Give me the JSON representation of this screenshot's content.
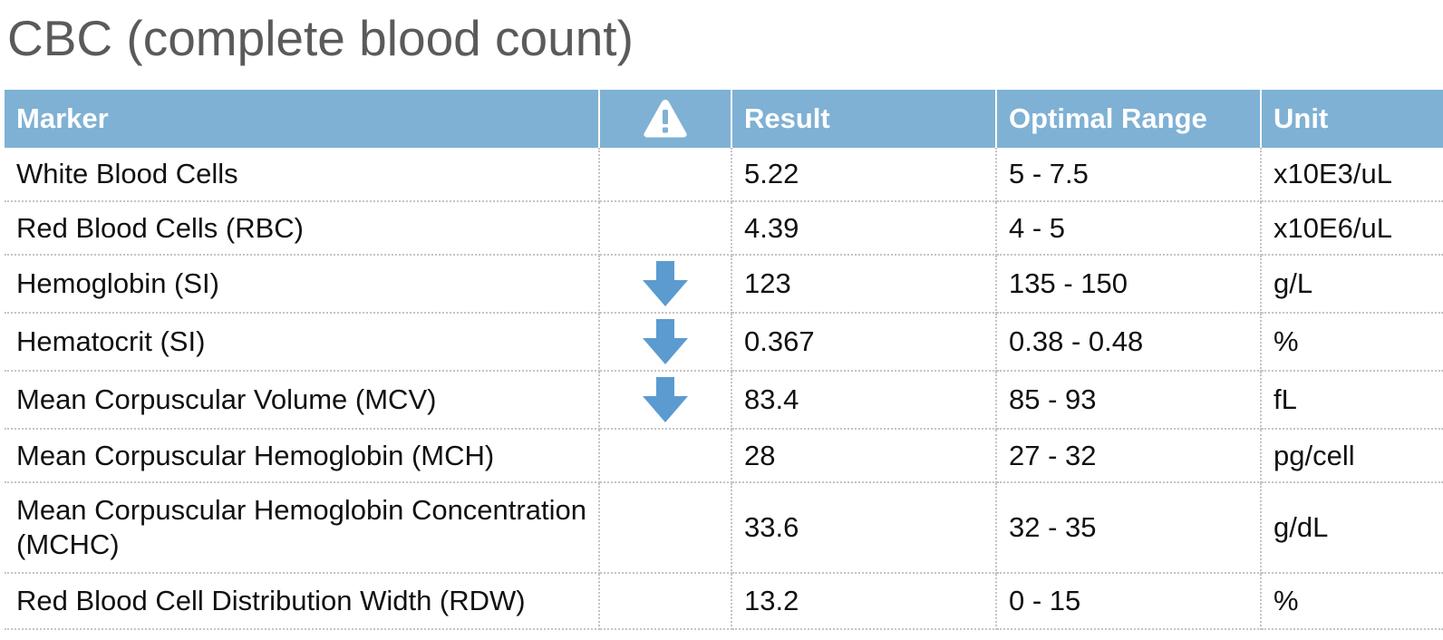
{
  "page": {
    "title": "CBC (complete blood count)"
  },
  "table": {
    "header": {
      "marker": "Marker",
      "flag_icon": "warning-icon",
      "result": "Result",
      "optimal_range": "Optimal Range",
      "unit": "Unit"
    },
    "rows": [
      {
        "marker": "White Blood Cells",
        "flag": "none",
        "result": "5.22",
        "optimal_range": "5 - 7.5",
        "unit": "x10E3/uL"
      },
      {
        "marker": "Red Blood Cells (RBC)",
        "flag": "none",
        "result": "4.39",
        "optimal_range": "4 - 5",
        "unit": "x10E6/uL"
      },
      {
        "marker": "Hemoglobin (SI)",
        "flag": "low",
        "result": "123",
        "optimal_range": "135 - 150",
        "unit": "g/L"
      },
      {
        "marker": "Hematocrit (SI)",
        "flag": "low",
        "result": "0.367",
        "optimal_range": "0.38 - 0.48",
        "unit": "%"
      },
      {
        "marker": "Mean Corpuscular Volume (MCV)",
        "flag": "low",
        "result": "83.4",
        "optimal_range": "85 - 93",
        "unit": "fL"
      },
      {
        "marker": "Mean Corpuscular Hemoglobin (MCH)",
        "flag": "none",
        "result": "28",
        "optimal_range": "27 - 32",
        "unit": "pg/cell"
      },
      {
        "marker": "Mean Corpuscular Hemoglobin Concentration (MCHC)",
        "flag": "none",
        "result": "33.6",
        "optimal_range": "32 - 35",
        "unit": "g/dL"
      },
      {
        "marker": "Red Blood Cell Distribution Width (RDW)",
        "flag": "none",
        "result": "13.2",
        "optimal_range": "0 - 15",
        "unit": "%"
      }
    ]
  },
  "colors": {
    "header_background": "#7fb1d4",
    "header_text": "#ffffff",
    "title_text": "#5a5a5a",
    "low_flag_arrow": "#5b9bd0",
    "row_divider": "#c4c4c4"
  }
}
